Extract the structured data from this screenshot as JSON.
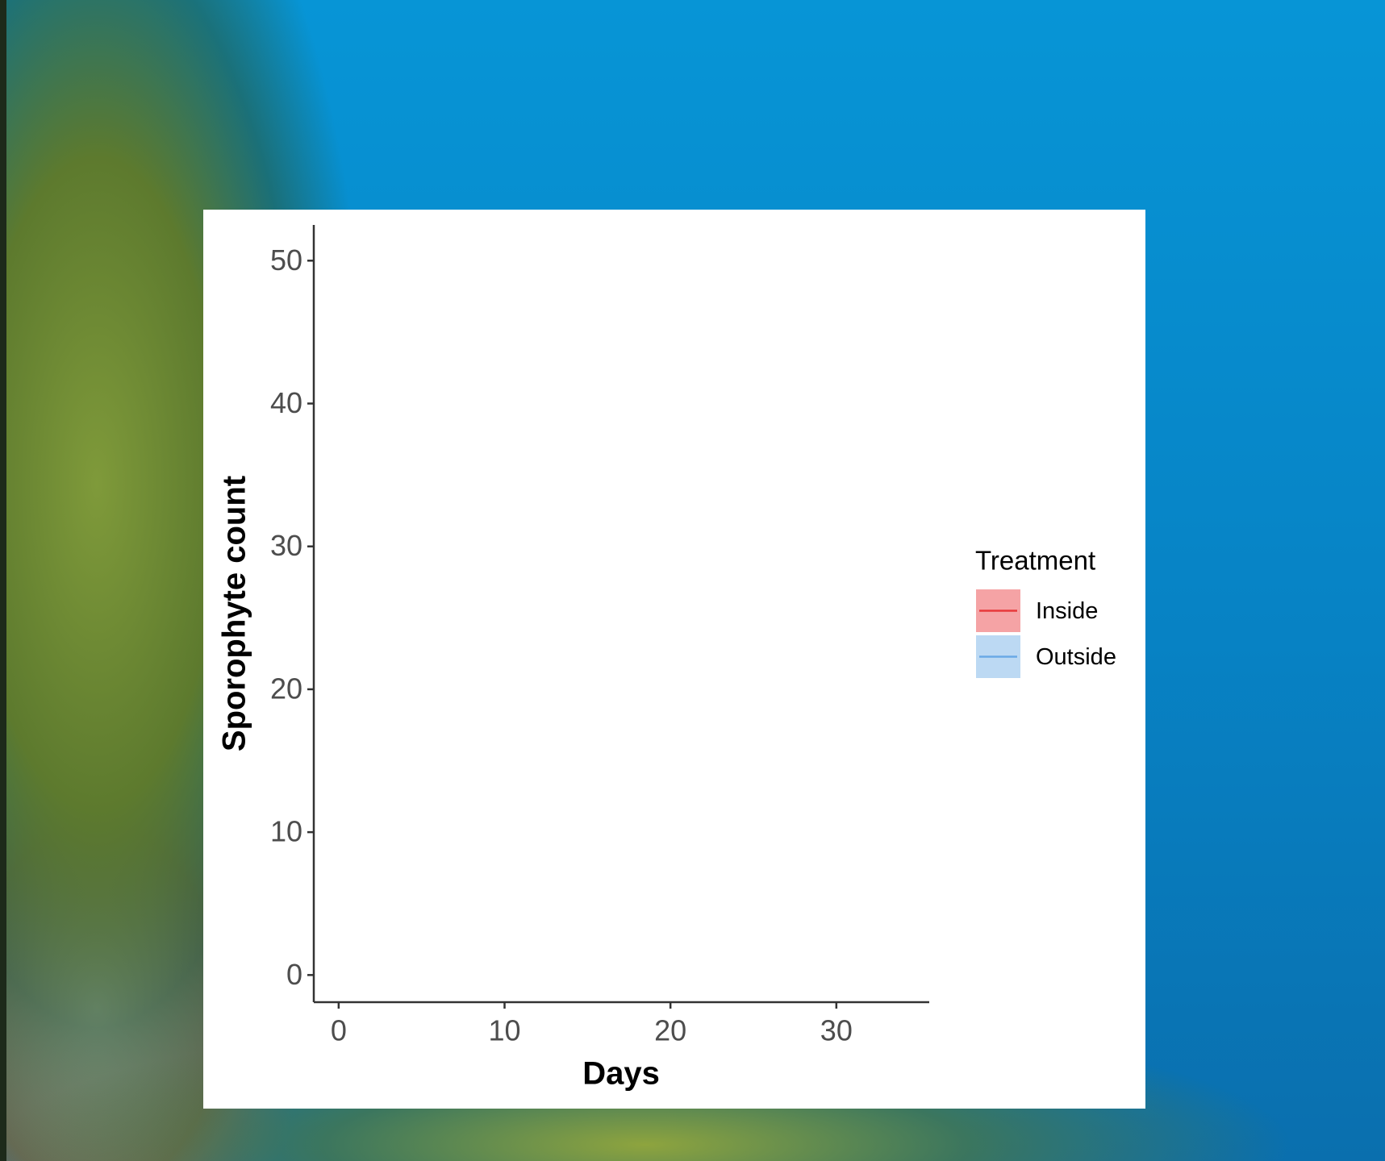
{
  "chart_data": {
    "type": "line",
    "xlabel": "Days",
    "ylabel": "Sporophyte count",
    "xlim": [
      -1.5,
      35.6
    ],
    "xticks": [
      0,
      10,
      20,
      30
    ],
    "ylim": [
      -1.9,
      52.5
    ],
    "yticks": [
      0,
      10,
      20,
      30,
      40,
      50
    ],
    "legend_title": "Treatment",
    "legend": "right",
    "x": [],
    "series": [
      {
        "name": "Inside",
        "color": "#e8393b",
        "fill": "#f5a3a5",
        "values": []
      },
      {
        "name": "Outside",
        "color": "#6aa9e6",
        "fill": "#bcd9f3",
        "values": []
      }
    ]
  }
}
